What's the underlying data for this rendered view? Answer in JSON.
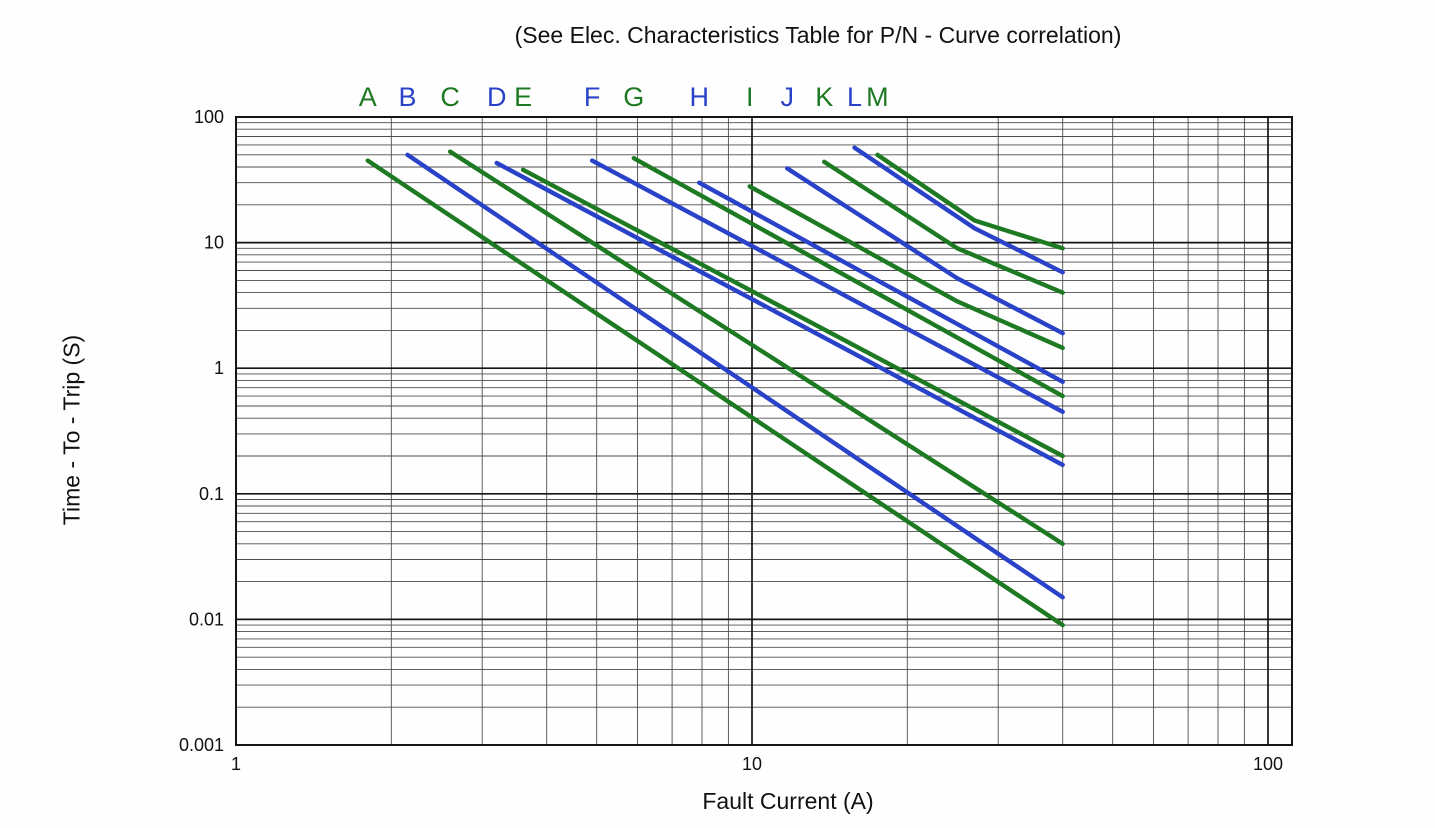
{
  "palette": {
    "green": "#1e7a22",
    "blue": "#2942c8"
  },
  "chart_data": {
    "type": "line",
    "title": "(See Elec. Characteristics Table for P/N - Curve correlation)",
    "xlabel": "Fault Current (A)",
    "ylabel": "Time - To - Trip (S)",
    "x_scale": "log",
    "y_scale": "log",
    "xlim": [
      1,
      100
    ],
    "ylim": [
      0.001,
      100
    ],
    "x_ticks": [
      "1",
      "10",
      "100"
    ],
    "y_ticks": [
      "100",
      "10",
      "1",
      "0.1",
      "0.01",
      "0.001"
    ],
    "grid": "on",
    "series": [
      {
        "name": "A",
        "color": "green",
        "points": [
          [
            1.8,
            45
          ],
          [
            40,
            0.009
          ]
        ]
      },
      {
        "name": "B",
        "color": "blue",
        "points": [
          [
            2.15,
            50
          ],
          [
            40,
            0.015
          ]
        ]
      },
      {
        "name": "C",
        "color": "green",
        "points": [
          [
            2.6,
            53
          ],
          [
            40,
            0.04
          ]
        ]
      },
      {
        "name": "D",
        "color": "blue",
        "points": [
          [
            3.2,
            43
          ],
          [
            40,
            0.17
          ]
        ]
      },
      {
        "name": "E",
        "color": "green",
        "points": [
          [
            3.6,
            38
          ],
          [
            40,
            0.2
          ]
        ]
      },
      {
        "name": "F",
        "color": "blue",
        "points": [
          [
            4.9,
            45
          ],
          [
            40,
            0.45
          ]
        ]
      },
      {
        "name": "G",
        "color": "green",
        "points": [
          [
            5.9,
            47
          ],
          [
            40,
            0.6
          ]
        ]
      },
      {
        "name": "H",
        "color": "blue",
        "points": [
          [
            7.9,
            30
          ],
          [
            40,
            0.78
          ]
        ]
      },
      {
        "name": "I",
        "color": "green",
        "points": [
          [
            9.9,
            28
          ],
          [
            25,
            3.4
          ],
          [
            40,
            1.45
          ]
        ]
      },
      {
        "name": "J",
        "color": "blue",
        "points": [
          [
            11.7,
            39
          ],
          [
            25,
            5.2
          ],
          [
            40,
            1.9
          ]
        ]
      },
      {
        "name": "K",
        "color": "green",
        "points": [
          [
            13.8,
            44
          ],
          [
            25,
            9
          ],
          [
            40,
            4
          ]
        ]
      },
      {
        "name": "L",
        "color": "blue",
        "points": [
          [
            15.8,
            57
          ],
          [
            27,
            13
          ],
          [
            40,
            5.8
          ]
        ]
      },
      {
        "name": "M",
        "color": "green",
        "points": [
          [
            17.5,
            50
          ],
          [
            27,
            15
          ],
          [
            40,
            9
          ]
        ]
      }
    ]
  }
}
